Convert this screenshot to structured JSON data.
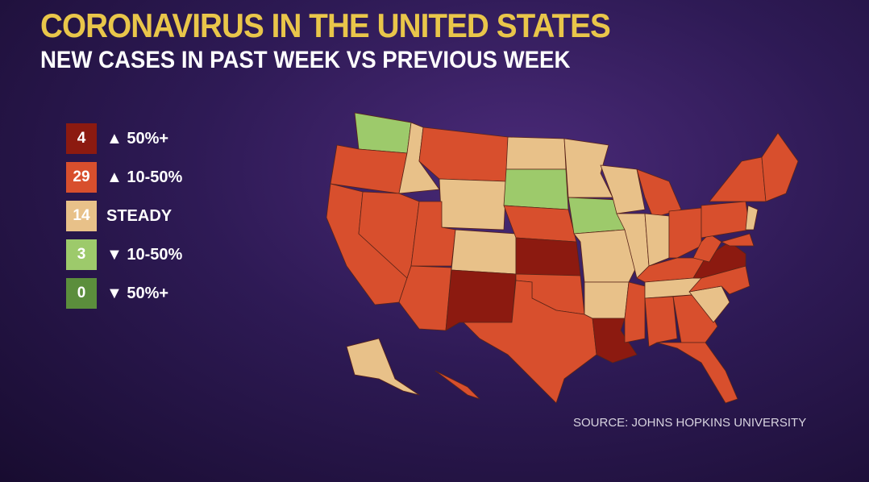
{
  "header": {
    "title": "CORONAVIRUS IN THE UNITED STATES",
    "subtitle": "NEW CASES IN PAST WEEK VS PREVIOUS WEEK"
  },
  "legend": [
    {
      "count": 4,
      "label": "▲ 50%+",
      "color": "#8c1a10"
    },
    {
      "count": 29,
      "label": "▲ 10-50%",
      "color": "#d84f2d"
    },
    {
      "count": 14,
      "label": "STEADY",
      "color": "#e8c189"
    },
    {
      "count": 3,
      "label": "▼ 10-50%",
      "color": "#9dca6b"
    },
    {
      "count": 0,
      "label": "▼ 50%+",
      "color": "#5b8e3c"
    }
  ],
  "source": "SOURCE: JOHNS HOPKINS UNIVERSITY"
}
